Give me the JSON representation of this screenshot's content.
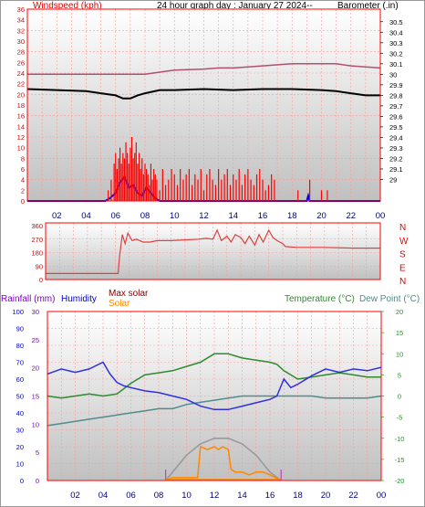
{
  "header": {
    "title": "24 hour graph day : January 27 2024--",
    "windspeed_label": "Windspeed (kph)",
    "barometer_label": "Barometer (.in)"
  },
  "x_ticks": [
    "02",
    "04",
    "06",
    "08",
    "10",
    "12",
    "14",
    "16",
    "18",
    "20",
    "22",
    "00"
  ],
  "colors": {
    "frame": "#ff0000",
    "grid": "#ff9999",
    "label_red": "#dd0000",
    "pressure": "#b05070",
    "windspeed": "#000000",
    "gust": "#ff0000",
    "wind_avg": "#0000ee",
    "direction": "#e04040",
    "outdoor_temp": "#2e8b2e",
    "dew_point": "#508c8c",
    "humidity": "#3030e0",
    "solar": "#ff8800",
    "max_solar": "#999999",
    "rainfall": "#8000c0"
  },
  "panel1": {
    "left_ticks": [
      "36",
      "34",
      "32",
      "30",
      "28",
      "26",
      "24",
      "22",
      "20",
      "18",
      "16",
      "14",
      "12",
      "10",
      "8",
      "6",
      "4",
      "2",
      "0"
    ],
    "right_ticks": [
      "30.5",
      "30.4",
      "30.3",
      "30.2",
      "30.1",
      "30",
      "29.9",
      "29.8",
      "29.7",
      "29.6",
      "29.5",
      "29.4",
      "29.3",
      "29.2",
      "29.1",
      "29"
    ]
  },
  "panel2": {
    "left_ticks": [
      "360",
      "270",
      "180",
      "90",
      "0"
    ],
    "compass": [
      "N",
      "W",
      "S",
      "E",
      "N"
    ]
  },
  "panel3": {
    "legend": {
      "rainfall": "Rainfall (mm)",
      "humidity": "Humidity",
      "max_solar": "Max solar",
      "solar": "Solar",
      "temperature": "Temperature (°C)",
      "dew_point": "Dew Point (°C)"
    },
    "humidity_ticks": [
      "100",
      "90",
      "80",
      "70",
      "60",
      "50",
      "40",
      "30",
      "20",
      "10",
      "0"
    ],
    "rain_ticks": [
      "30",
      "25",
      "20",
      "15",
      "10",
      "5",
      "0"
    ],
    "temp_ticks": [
      "20",
      "15",
      "10",
      "5",
      "0",
      "-5",
      "-10",
      "-15",
      "-20"
    ]
  },
  "chart_data": [
    {
      "type": "line",
      "name": "wind speed and barometer",
      "x_unit": "hours",
      "xlim": [
        0,
        24
      ],
      "y_left_range": [
        0,
        36
      ],
      "y_right_range": [
        28.9,
        30.55
      ],
      "series": [
        {
          "key": "pressure",
          "axis": "right",
          "x": [
            0,
            2,
            4,
            6,
            7,
            8,
            9,
            10,
            12,
            13,
            14,
            16,
            18,
            20,
            21,
            22,
            24
          ],
          "values": [
            30.0,
            30.0,
            30.0,
            30.0,
            30.0,
            30.0,
            30.02,
            30.04,
            30.05,
            30.06,
            30.06,
            30.08,
            30.1,
            30.1,
            30.1,
            30.08,
            30.06
          ]
        },
        {
          "key": "windspeed",
          "axis": "right",
          "x": [
            0,
            2,
            4,
            5,
            6,
            6.5,
            7,
            7.5,
            8,
            9,
            10,
            12,
            14,
            16,
            18,
            20,
            21,
            22,
            23,
            24
          ],
          "values": [
            29.86,
            29.85,
            29.84,
            29.82,
            29.8,
            29.77,
            29.77,
            29.8,
            29.82,
            29.85,
            29.85,
            29.86,
            29.85,
            29.86,
            29.86,
            29.85,
            29.84,
            29.82,
            29.8,
            29.8
          ]
        },
        {
          "key": "wind_avg",
          "axis": "left",
          "x": [
            0,
            5.3,
            5.6,
            6,
            6.3,
            6.6,
            6.9,
            7.2,
            7.5,
            7.8,
            8.1,
            8.4,
            8.7,
            9,
            16.8,
            19,
            19.1,
            19.2,
            24
          ],
          "values": [
            0,
            0,
            0.5,
            1.5,
            3.5,
            4.5,
            2.5,
            3,
            1.5,
            1,
            2.5,
            1.5,
            0.5,
            0,
            0,
            0,
            1,
            0,
            0
          ]
        },
        {
          "key": "gust",
          "axis": "left",
          "bar_like": true,
          "x": [
            5.5,
            5.7,
            5.9,
            6.0,
            6.1,
            6.2,
            6.3,
            6.4,
            6.5,
            6.6,
            6.7,
            6.8,
            6.9,
            7.0,
            7.1,
            7.2,
            7.3,
            7.4,
            7.5,
            7.6,
            7.7,
            7.8,
            7.9,
            8.0,
            8.1,
            8.2,
            8.3,
            8.4,
            8.5,
            8.6,
            8.7,
            8.8,
            9.0,
            9.2,
            9.4,
            9.6,
            9.8,
            10.0,
            10.2,
            10.4,
            10.6,
            10.8,
            11.0,
            11.2,
            11.4,
            11.6,
            11.8,
            12.0,
            12.2,
            12.4,
            12.6,
            12.8,
            13.0,
            13.2,
            13.4,
            13.6,
            13.8,
            14.0,
            14.2,
            14.4,
            14.6,
            14.8,
            15.0,
            15.2,
            15.4,
            15.6,
            15.8,
            16.0,
            16.2,
            16.4,
            16.6,
            16.8,
            18.4,
            19.2,
            20.0,
            20.4
          ],
          "values": [
            2,
            4,
            7,
            9,
            6,
            8,
            10,
            7,
            9,
            8,
            11,
            9,
            7,
            10,
            12,
            8,
            9,
            11,
            7,
            9,
            6,
            8,
            5,
            7,
            6,
            5,
            3,
            7,
            4,
            6,
            5,
            4,
            2,
            6,
            3,
            4,
            6,
            5,
            3,
            6,
            4,
            5,
            6,
            3,
            5,
            4,
            6,
            2,
            5,
            6,
            4,
            3,
            6,
            4,
            5,
            6,
            3,
            5,
            4,
            6,
            3,
            5,
            6,
            4,
            3,
            5,
            6,
            4,
            2,
            3,
            5,
            4,
            2,
            4,
            2,
            2
          ]
        }
      ]
    },
    {
      "type": "line",
      "name": "wind direction",
      "x_unit": "hours",
      "xlim": [
        0,
        24
      ],
      "ylim": [
        0,
        360
      ],
      "series": [
        {
          "key": "direction",
          "x": [
            0,
            5.2,
            5.3,
            5.5,
            5.7,
            5.9,
            6.2,
            6.5,
            7,
            7.5,
            8,
            9,
            10,
            11,
            11.5,
            12,
            12.3,
            12.6,
            13,
            13.3,
            13.6,
            14,
            14.3,
            14.6,
            15,
            15.3,
            15.6,
            16,
            16.3,
            16.6,
            17,
            17.2,
            18,
            20,
            22,
            24
          ],
          "values": [
            40,
            40,
            150,
            300,
            240,
            310,
            260,
            270,
            250,
            250,
            260,
            260,
            265,
            270,
            275,
            270,
            330,
            260,
            290,
            250,
            300,
            280,
            240,
            290,
            230,
            300,
            250,
            330,
            280,
            260,
            240,
            220,
            215,
            215,
            210,
            210
          ]
        }
      ]
    },
    {
      "type": "line",
      "name": "temperature, humidity and solar",
      "x_unit": "hours",
      "xlim": [
        0,
        24
      ],
      "y_left_range": [
        0,
        100
      ],
      "y_temp_range": [
        -20,
        20
      ],
      "series": [
        {
          "key": "outdoor_temp",
          "axis": "temp",
          "x": [
            0,
            1,
            2,
            3,
            4,
            5,
            6,
            6.5,
            7,
            8,
            9,
            10,
            11,
            12,
            13,
            14,
            15,
            16,
            16.5,
            17,
            18,
            19,
            20,
            21,
            22,
            23,
            24
          ],
          "values": [
            0,
            -0.5,
            0,
            0.5,
            0,
            0.5,
            3,
            4,
            5,
            5.5,
            6,
            7,
            8,
            10,
            10,
            9,
            8.5,
            8,
            7.5,
            6,
            4,
            4.5,
            5,
            5.5,
            5,
            4.5,
            4.5
          ]
        },
        {
          "key": "dew_point",
          "axis": "temp",
          "x": [
            0,
            1,
            2,
            3,
            4,
            5,
            6,
            7,
            8,
            9,
            10,
            11,
            12,
            13,
            14,
            15,
            16,
            17,
            18,
            19,
            20,
            21,
            22,
            23,
            24
          ],
          "values": [
            -7,
            -6.5,
            -6,
            -5.5,
            -5,
            -4.5,
            -4,
            -3.5,
            -3,
            -3,
            -2,
            -1.5,
            -1,
            -0.5,
            0,
            0,
            0,
            0,
            0,
            0,
            -0.5,
            -0.5,
            -0.5,
            -0.5,
            0
          ]
        },
        {
          "key": "humidity",
          "axis": "humidity",
          "x": [
            0,
            1,
            2,
            3,
            4,
            4.5,
            5,
            5.5,
            6,
            7,
            8,
            9,
            10,
            11,
            12,
            13,
            14,
            15,
            16,
            16.5,
            17,
            17.5,
            18,
            19,
            20,
            21,
            22,
            23,
            24
          ],
          "values": [
            63,
            66,
            64,
            66,
            70,
            63,
            58,
            56,
            55,
            53,
            52,
            50,
            48,
            44,
            42,
            42,
            44,
            46,
            48,
            50,
            60,
            55,
            57,
            62,
            66,
            64,
            66,
            65,
            67
          ]
        },
        {
          "key": "max_solar",
          "axis": "rain",
          "x": [
            8.5,
            9,
            10,
            11,
            12,
            13,
            14,
            15,
            16,
            16.8
          ],
          "values": [
            0,
            1.5,
            4.5,
            6.5,
            7.5,
            7.5,
            6.5,
            4.5,
            1.5,
            0
          ]
        },
        {
          "key": "solar",
          "axis": "rain",
          "x": [
            8.5,
            9,
            10,
            10.8,
            11,
            11.5,
            12,
            12.3,
            12.6,
            13,
            13.2,
            13.5,
            14,
            14.5,
            15,
            15.5,
            16,
            16.8
          ],
          "values": [
            0,
            0.5,
            0.5,
            0.5,
            6,
            5.5,
            6,
            5.5,
            6,
            5.5,
            2,
            1.5,
            1.5,
            1,
            1.5,
            1.5,
            1,
            0
          ]
        }
      ]
    }
  ]
}
